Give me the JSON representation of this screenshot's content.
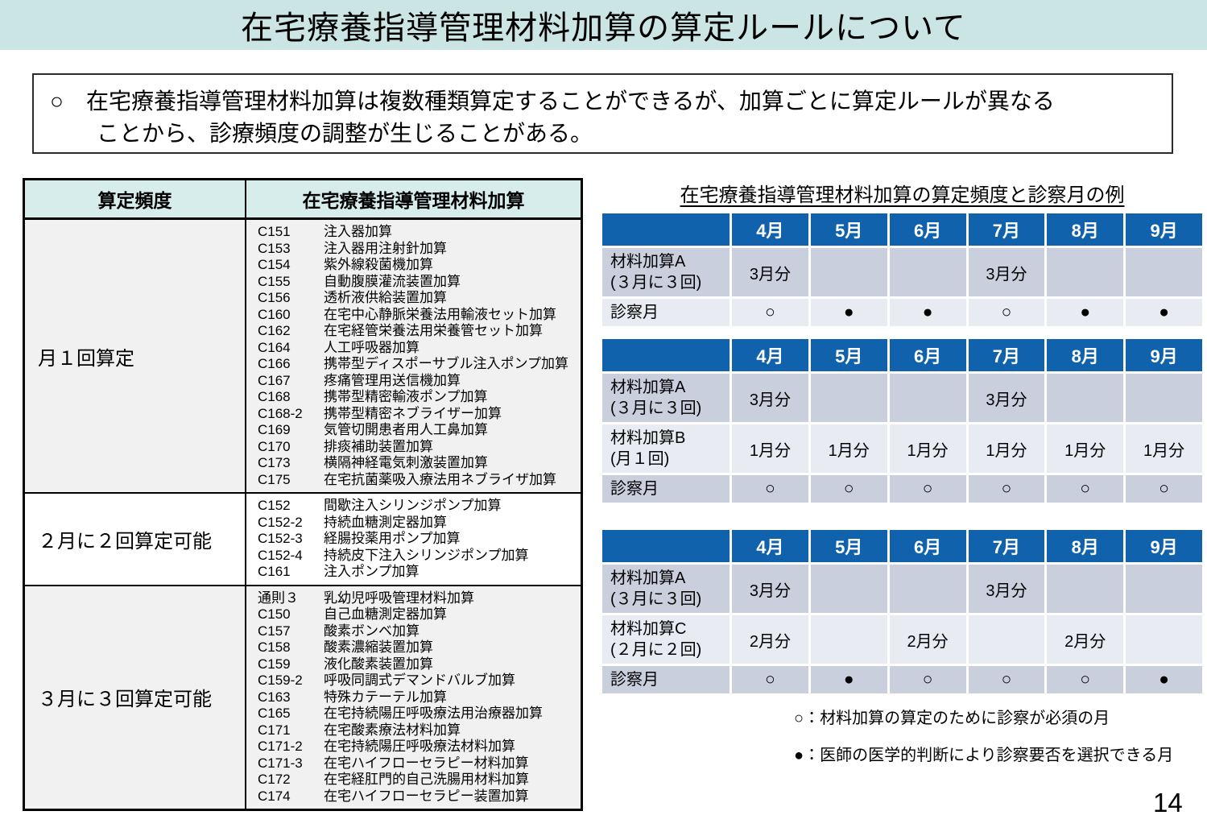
{
  "title": "在宅療養指導管理材料加算の算定ルールについて",
  "intro": {
    "bullet": "○",
    "line1": "在宅療養指導管理材料加算は複数種類算定することができるが、加算ごとに算定ルールが異なる",
    "line2": "ことから、診療頻度の調整が生じることがある。"
  },
  "left_table": {
    "headers": [
      "算定頻度",
      "在宅療養指導管理材料加算"
    ],
    "rows": [
      {
        "frequency": "月１回算定",
        "items": [
          {
            "code": "C151",
            "name": "注入器加算"
          },
          {
            "code": "C153",
            "name": "注入器用注射針加算"
          },
          {
            "code": "C154",
            "name": "紫外線殺菌機加算"
          },
          {
            "code": "C155",
            "name": "自動腹膜灌流装置加算"
          },
          {
            "code": "C156",
            "name": "透析液供給装置加算"
          },
          {
            "code": "C160",
            "name": "在宅中心静脈栄養法用輸液セット加算"
          },
          {
            "code": "C162",
            "name": "在宅経管栄養法用栄養管セット加算"
          },
          {
            "code": "C164",
            "name": "人工呼吸器加算"
          },
          {
            "code": "C166",
            "name": "携帯型ディスポーサブル注入ポンプ加算"
          },
          {
            "code": "C167",
            "name": "疼痛管理用送信機加算"
          },
          {
            "code": "C168",
            "name": "携帯型精密輸液ポンプ加算"
          },
          {
            "code": "C168-2",
            "name": "携帯型精密ネブライザー加算"
          },
          {
            "code": "C169",
            "name": "気管切開患者用人工鼻加算"
          },
          {
            "code": "C170",
            "name": "排痰補助装置加算"
          },
          {
            "code": "C173",
            "name": "横隔神経電気刺激装置加算"
          },
          {
            "code": "C175",
            "name": "在宅抗菌薬吸入療法用ネブライザ加算"
          }
        ]
      },
      {
        "frequency": "２月に２回算定可能",
        "items": [
          {
            "code": "C152",
            "name": "間歇注入シリンジポンプ加算"
          },
          {
            "code": "C152-2",
            "name": "持続血糖測定器加算"
          },
          {
            "code": "C152-3",
            "name": "経腸投薬用ポンプ加算"
          },
          {
            "code": "C152-4",
            "name": "持続皮下注入シリンジポンプ加算"
          },
          {
            "code": "C161",
            "name": "注入ポンプ加算"
          }
        ]
      },
      {
        "frequency": "３月に３回算定可能",
        "items": [
          {
            "code": "通則３",
            "name": "乳幼児呼吸管理材料加算"
          },
          {
            "code": "C150",
            "name": "自己血糖測定器加算"
          },
          {
            "code": "C157",
            "name": "酸素ボンベ加算"
          },
          {
            "code": "C158",
            "name": "酸素濃縮装置加算"
          },
          {
            "code": "C159",
            "name": "液化酸素装置加算"
          },
          {
            "code": "C159-2",
            "name": "呼吸同調式デマンドバルブ加算"
          },
          {
            "code": "C163",
            "name": "特殊カテーテル加算"
          },
          {
            "code": "C165",
            "name": "在宅持続陽圧呼吸療法用治療器加算"
          },
          {
            "code": "C171",
            "name": "在宅酸素療法材料加算"
          },
          {
            "code": "C171-2",
            "name": "在宅持続陽圧呼吸療法材料加算"
          },
          {
            "code": "C171-3",
            "name": "在宅ハイフローセラピー材料加算"
          },
          {
            "code": "C172",
            "name": "在宅経肛門的自己洗腸用材料加算"
          },
          {
            "code": "C174",
            "name": "在宅ハイフローセラピー装置加算"
          }
        ]
      }
    ]
  },
  "right_section": {
    "title": "在宅療養指導管理材料加算の算定頻度と診察月の例",
    "months": [
      "4月",
      "5月",
      "6月",
      "7月",
      "8月",
      "9月"
    ],
    "tables": [
      {
        "rows": [
          {
            "label": "材料加算A",
            "sublabel": "(３月に３回)",
            "cells": [
              "3月分",
              "",
              "",
              "3月分",
              "",
              ""
            ]
          },
          {
            "label": "診察月",
            "sublabel": "",
            "cells": [
              "○",
              "●",
              "●",
              "○",
              "●",
              "●"
            ]
          }
        ]
      },
      {
        "rows": [
          {
            "label": "材料加算A",
            "sublabel": "(３月に３回)",
            "cells": [
              "3月分",
              "",
              "",
              "3月分",
              "",
              ""
            ]
          },
          {
            "label": "材料加算B",
            "sublabel": "(月１回)",
            "cells": [
              "1月分",
              "1月分",
              "1月分",
              "1月分",
              "1月分",
              "1月分"
            ]
          },
          {
            "label": "診察月",
            "sublabel": "",
            "cells": [
              "○",
              "○",
              "○",
              "○",
              "○",
              "○"
            ]
          }
        ]
      },
      {
        "rows": [
          {
            "label": "材料加算A",
            "sublabel": "(３月に３回)",
            "cells": [
              "3月分",
              "",
              "",
              "3月分",
              "",
              ""
            ]
          },
          {
            "label": "材料加算C",
            "sublabel": "(２月に２回)",
            "cells": [
              "2月分",
              "",
              "2月分",
              "",
              "2月分",
              ""
            ]
          },
          {
            "label": "診察月",
            "sublabel": "",
            "cells": [
              "○",
              "●",
              "○",
              "○",
              "○",
              "●"
            ]
          }
        ]
      }
    ],
    "legend": [
      "○：材料加算の算定のために診察が必須の月",
      "●：医師の医学的判断により診察要否を選択できる月"
    ]
  },
  "page_number": "14",
  "colors": {
    "title_band": "#CBE5E4",
    "left_header_teal": "#D6EDEB",
    "month_header_blue": "#1062AC",
    "row_dark": "#CACFDE",
    "row_light": "#E9EBF3",
    "left_row_gray": "#F1F1F1"
  }
}
